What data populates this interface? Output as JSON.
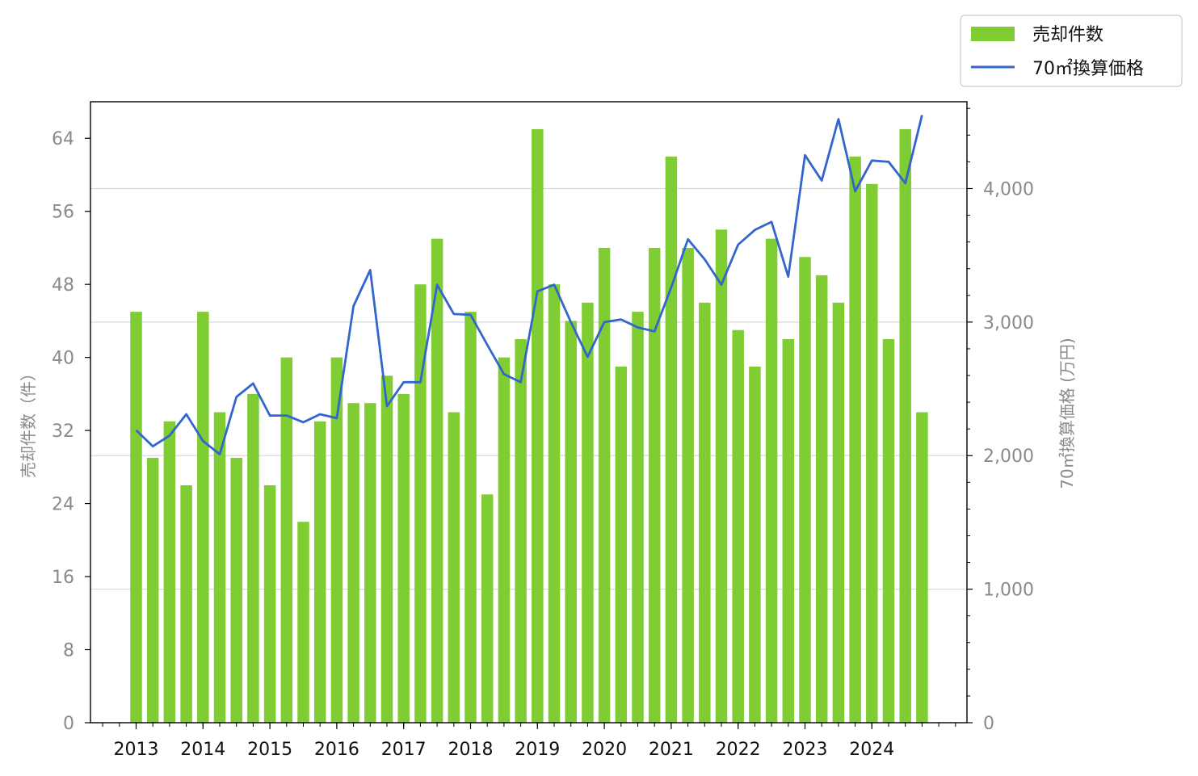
{
  "chart_data": {
    "type": "bar+line",
    "x_tick_labels": [
      "2013",
      "2014",
      "2015",
      "2016",
      "2017",
      "2018",
      "2019",
      "2020",
      "2021",
      "2022",
      "2023",
      "2024"
    ],
    "quarters_start": "2013 Q1",
    "bars": {
      "name": "売却件数",
      "color": "#7fcc33",
      "values": [
        45,
        29,
        33,
        26,
        45,
        34,
        29,
        36,
        26,
        40,
        22,
        33,
        40,
        35,
        35,
        38,
        36,
        48,
        53,
        34,
        45,
        25,
        40,
        42,
        65,
        48,
        44,
        46,
        52,
        39,
        45,
        52,
        62,
        52,
        46,
        54,
        43,
        39,
        53,
        42,
        51,
        49,
        46,
        62,
        59,
        42,
        65,
        34
      ]
    },
    "line": {
      "name": "70㎡換算価格",
      "color": "#3366cc",
      "values": [
        2190,
        2070,
        2150,
        2310,
        2110,
        2010,
        2440,
        2540,
        2300,
        2300,
        2250,
        2310,
        2280,
        3120,
        3390,
        2370,
        2550,
        2550,
        3280,
        3060,
        3055,
        2830,
        2610,
        2550,
        3230,
        3280,
        3000,
        2740,
        3000,
        3020,
        2960,
        2930,
        3260,
        3620,
        3470,
        3280,
        3580,
        3690,
        3750,
        3340,
        4250,
        4060,
        4520,
        3980,
        4210,
        4200,
        4040,
        4550
      ]
    },
    "y_left": {
      "label": "売却件数（件）",
      "ticks": [
        "0",
        "8",
        "16",
        "24",
        "32",
        "40",
        "48",
        "56",
        "64"
      ],
      "range": [
        0,
        68
      ]
    },
    "y_right": {
      "label": "70㎡換算価格 (万円)",
      "ticks": [
        "0",
        "1,000",
        "2,000",
        "3,000",
        "4,000"
      ],
      "range": [
        0,
        4650
      ]
    },
    "grid": "horizontal (right axis)",
    "legend_position": "top-right, outside plot"
  }
}
